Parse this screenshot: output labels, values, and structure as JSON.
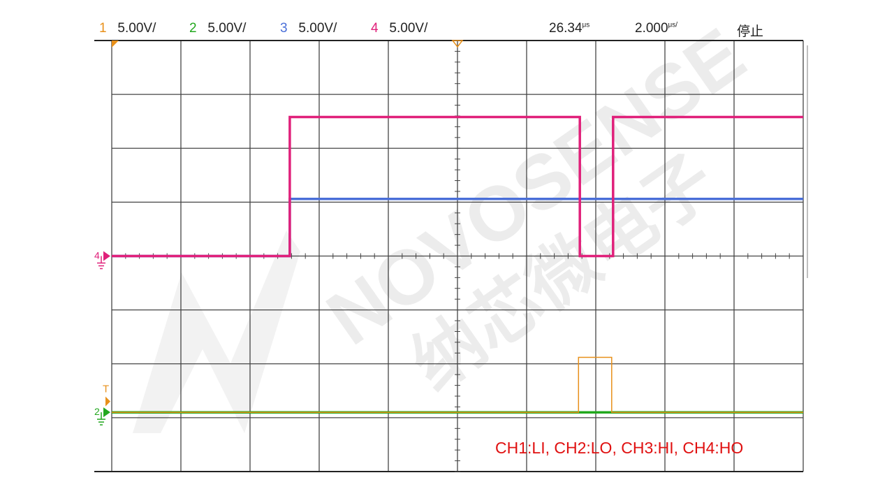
{
  "header": {
    "channels": [
      {
        "num": "1",
        "scale": "5.00V/",
        "color": "#e8901a"
      },
      {
        "num": "2",
        "scale": "5.00V/",
        "color": "#22a81e"
      },
      {
        "num": "3",
        "scale": "5.00V/",
        "color": "#4a6fd8"
      },
      {
        "num": "4",
        "scale": "5.00V/",
        "color": "#e0207a"
      }
    ],
    "time_position": "26.34",
    "time_position_unit": "μs",
    "time_scale": "2.000",
    "time_scale_unit": "μs/",
    "run_state": "停止"
  },
  "watermark": {
    "text_en": "NOVOSENSE",
    "text_cn": "纳芯微电子"
  },
  "annotation": "CH1:LI, CH2:LO, CH3:HI, CH4:HO",
  "chart_data": {
    "type": "line",
    "xlabel": "",
    "ylabel": "",
    "x_unit": "μs",
    "xlim": [
      -10,
      10
    ],
    "grid": true,
    "grid_divisions": {
      "x": 10,
      "y": 8
    },
    "volts_per_div": 5,
    "trigger_marker": "T",
    "series": [
      {
        "channel": "1",
        "color": "#e8901a",
        "ground_div": -2.9,
        "points": [
          [
            -10,
            0
          ],
          [
            3.5,
            0
          ],
          [
            3.5,
            5.1
          ],
          [
            4.46,
            5.1
          ],
          [
            4.46,
            0
          ],
          [
            10,
            0
          ]
        ]
      },
      {
        "channel": "2",
        "color": "#22a81e",
        "ground_div": -2.9,
        "points": [
          [
            -10,
            0
          ],
          [
            10,
            0
          ]
        ]
      },
      {
        "channel": "3",
        "color": "#4a6fd8",
        "ground_div": 0,
        "points": [
          [
            -10,
            0
          ],
          [
            -4.85,
            0
          ],
          [
            -4.85,
            5.3
          ],
          [
            10,
            5.3
          ]
        ]
      },
      {
        "channel": "4",
        "color": "#e0207a",
        "ground_div": 0,
        "points": [
          [
            -10,
            0
          ],
          [
            -4.85,
            0
          ],
          [
            -4.85,
            12.9
          ],
          [
            3.54,
            12.9
          ],
          [
            3.54,
            0
          ],
          [
            4.5,
            0
          ],
          [
            4.5,
            12.9
          ],
          [
            10,
            12.9
          ]
        ]
      }
    ]
  }
}
